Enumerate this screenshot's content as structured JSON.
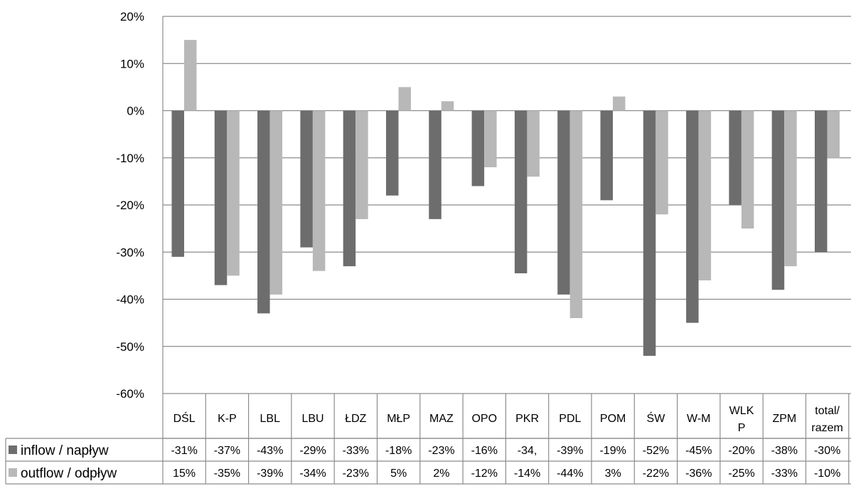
{
  "chart_data": {
    "type": "bar",
    "categories": [
      "DŚL",
      "K-P",
      "LBL",
      "LBU",
      "ŁDZ",
      "MŁP",
      "MAZ",
      "OPO",
      "PKR",
      "PDL",
      "POM",
      "ŚW",
      "W-M",
      "WLK P",
      "ZPM",
      "total/ razem"
    ],
    "category_lines": [
      [
        "DŚL"
      ],
      [
        "K-P"
      ],
      [
        "LBL"
      ],
      [
        "LBU"
      ],
      [
        "ŁDZ"
      ],
      [
        "MŁP"
      ],
      [
        "MAZ"
      ],
      [
        "OPO"
      ],
      [
        "PKR"
      ],
      [
        "PDL"
      ],
      [
        "POM"
      ],
      [
        "ŚW"
      ],
      [
        "W-M"
      ],
      [
        "WLK",
        "P"
      ],
      [
        "ZPM"
      ],
      [
        "total/",
        "razem"
      ]
    ],
    "series": [
      {
        "name": "inflow / napływ",
        "color": "#6d6d6d",
        "values": [
          -31,
          -37,
          -43,
          -29,
          -33,
          -18,
          -23,
          -16,
          -34.5,
          -39,
          -19,
          -52,
          -45,
          -20,
          -38,
          -30
        ],
        "table_labels": [
          "-31%",
          "-37%",
          "-43%",
          "-29%",
          "-33%",
          "-18%",
          "-23%",
          "-16%",
          "-34,",
          "-39%",
          "-19%",
          "-52%",
          "-45%",
          "-20%",
          "-38%",
          "-30%"
        ]
      },
      {
        "name": "outflow / odpływ",
        "color": "#b8b8b8",
        "values": [
          15,
          -35,
          -39,
          -34,
          -23,
          5,
          2,
          -12,
          -14,
          -44,
          3,
          -22,
          -36,
          -25,
          -33,
          -10
        ],
        "table_labels": [
          "15%",
          "-35%",
          "-39%",
          "-34%",
          "-23%",
          "5%",
          "2%",
          "-12%",
          "-14%",
          "-44%",
          "3%",
          "-22%",
          "-36%",
          "-25%",
          "-33%",
          "-10%"
        ]
      }
    ],
    "ylim": [
      -60,
      20
    ],
    "yticks": [
      20,
      10,
      0,
      -10,
      -20,
      -30,
      -40,
      -50,
      -60
    ],
    "ytick_labels": [
      "20%",
      "10%",
      "0%",
      "-10%",
      "-20%",
      "-30%",
      "-40%",
      "-50%",
      "-60%"
    ],
    "grid": true,
    "legend": "data table"
  }
}
